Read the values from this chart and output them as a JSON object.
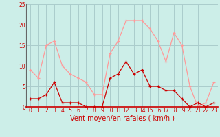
{
  "title": "",
  "xlabel": "Vent moyen/en rafales ( km/h )",
  "background_color": "#cceee8",
  "grid_color": "#aacccc",
  "x_values": [
    0,
    1,
    2,
    3,
    4,
    5,
    6,
    7,
    8,
    9,
    10,
    11,
    12,
    13,
    14,
    15,
    16,
    17,
    18,
    19,
    20,
    21,
    22,
    23
  ],
  "mean_values": [
    2,
    2,
    3,
    6,
    1,
    1,
    1,
    0,
    0,
    0,
    7,
    8,
    11,
    8,
    9,
    5,
    5,
    4,
    4,
    2,
    0,
    1,
    0,
    1
  ],
  "gust_values": [
    9,
    7,
    15,
    16,
    10,
    8,
    7,
    6,
    3,
    3,
    13,
    16,
    21,
    21,
    21,
    19,
    16,
    11,
    18,
    15,
    5,
    0,
    1,
    6
  ],
  "mean_color": "#cc0000",
  "gust_color": "#ff9999",
  "xlim_min": -0.5,
  "xlim_max": 23.5,
  "ylim_min": 0,
  "ylim_max": 25,
  "yticks": [
    0,
    5,
    10,
    15,
    20,
    25
  ],
  "xticks": [
    0,
    1,
    2,
    3,
    4,
    5,
    6,
    7,
    8,
    9,
    10,
    11,
    12,
    13,
    14,
    15,
    16,
    17,
    18,
    19,
    20,
    21,
    22,
    23
  ],
  "xlabel_fontsize": 7,
  "tick_fontsize": 5.5
}
